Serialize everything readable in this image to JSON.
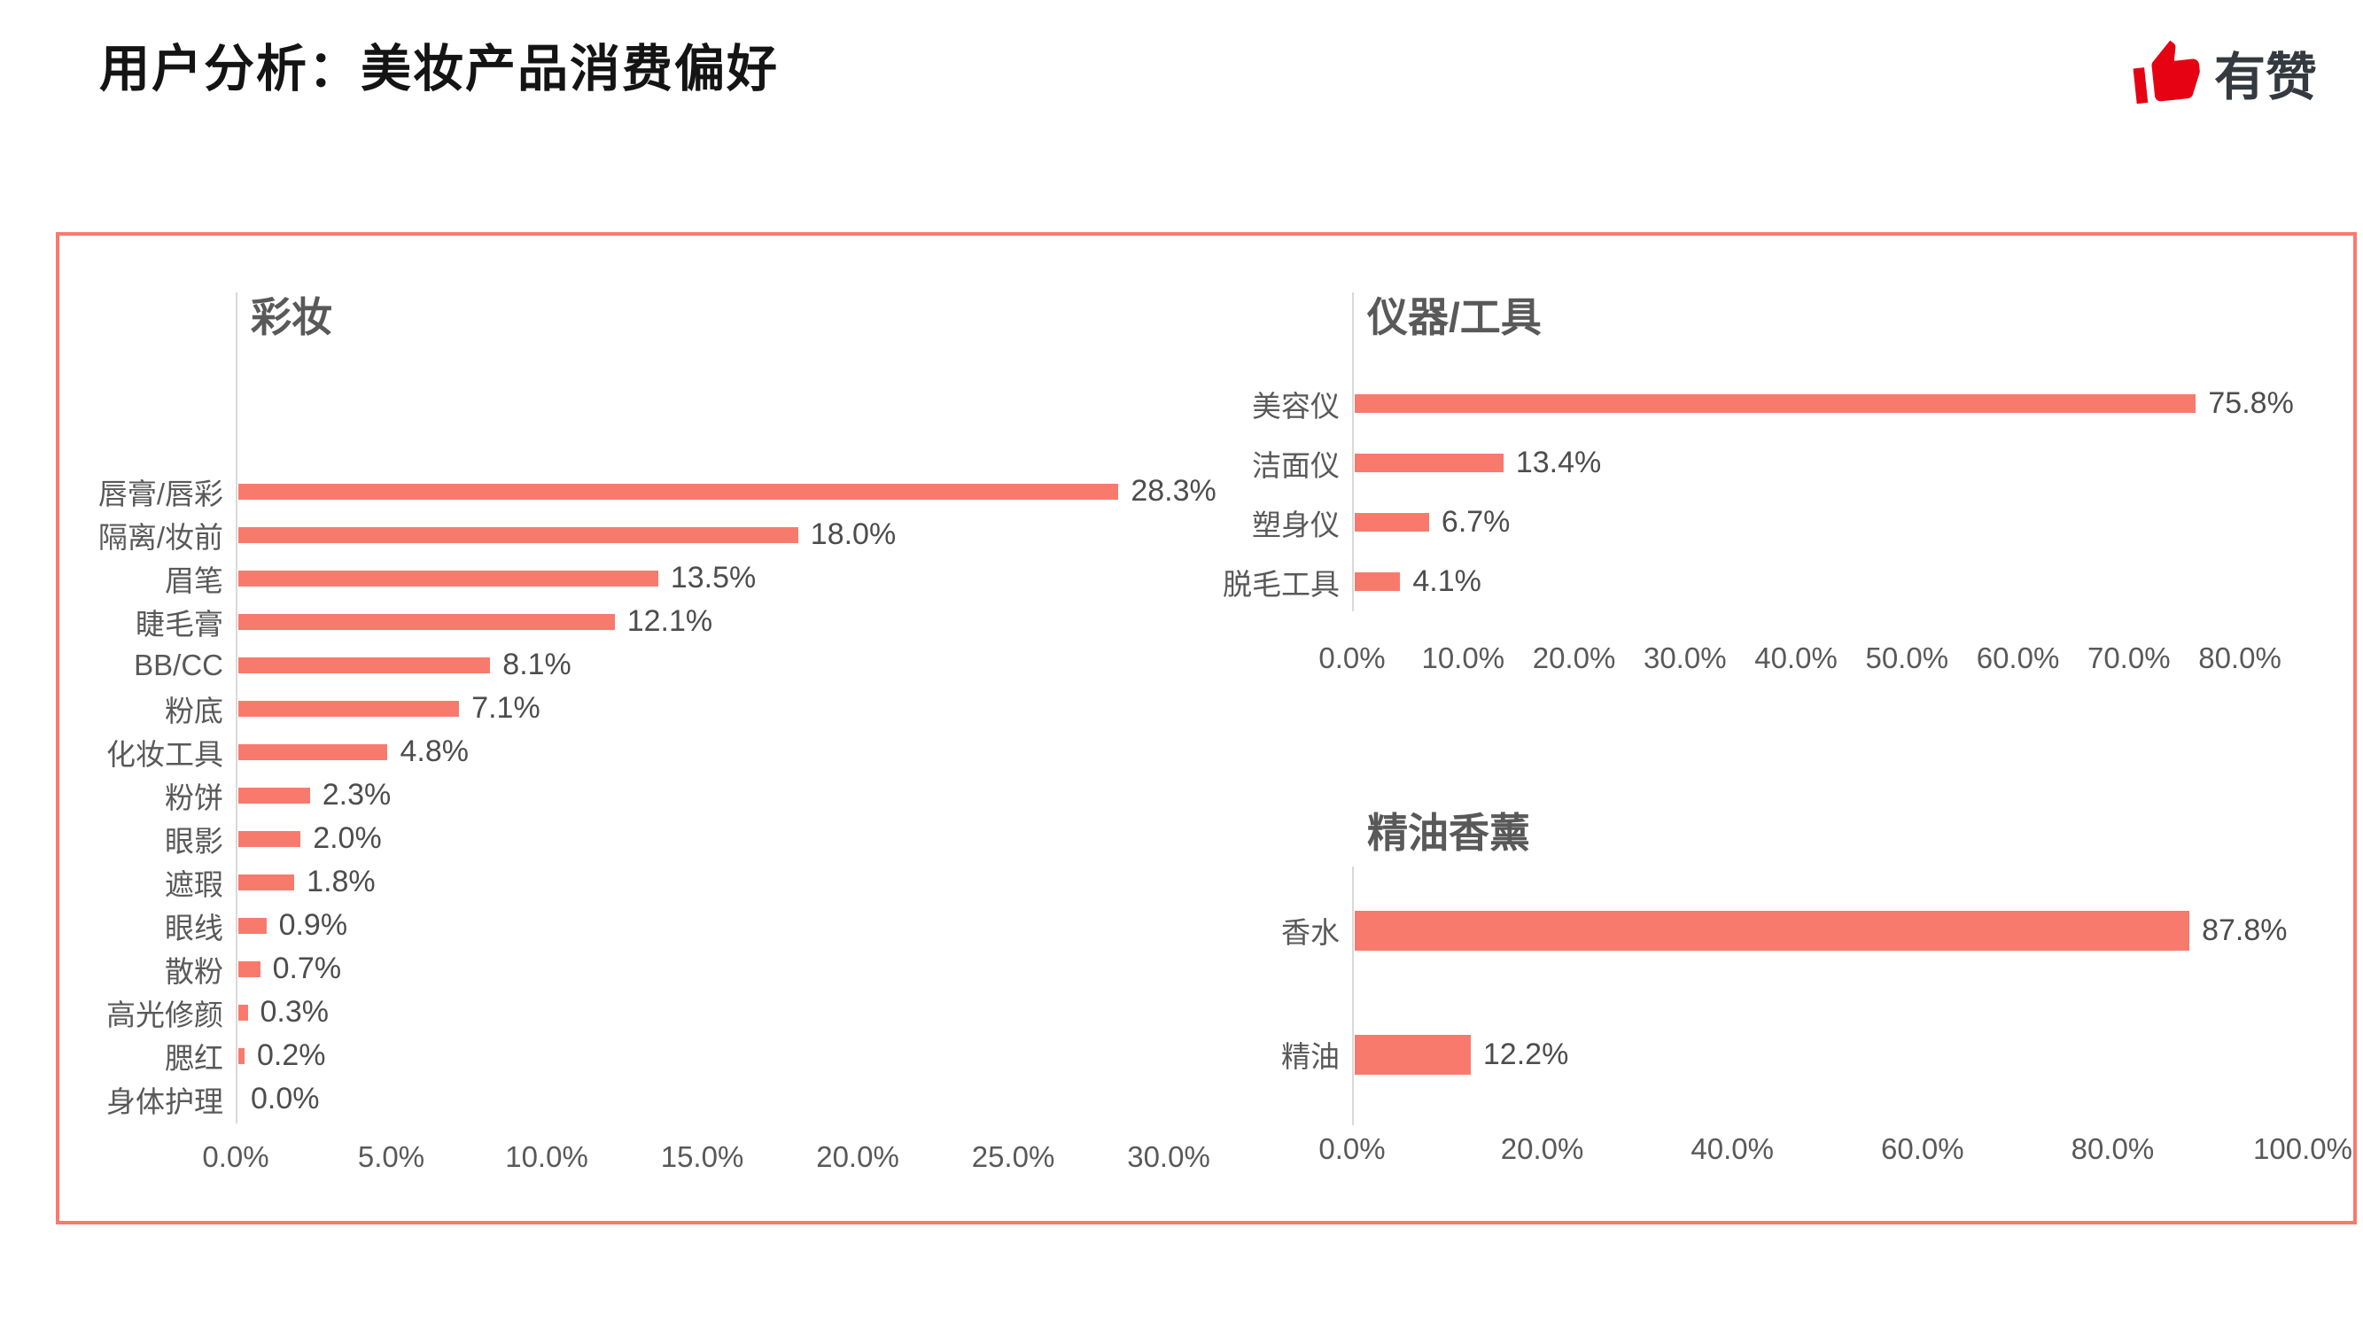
{
  "header": {
    "title": "用户分析：美妆产品消费偏好",
    "logo": {
      "brand": "有赞",
      "icon": "thumbs-up-icon"
    }
  },
  "colors": {
    "accent": "#F87A6D",
    "logo_red": "#E60213",
    "axis_gray": "#D9D9D9",
    "label_gray": "#595959"
  },
  "chart_data": [
    {
      "id": "makeup",
      "type": "bar",
      "orientation": "horizontal",
      "title": "彩妆",
      "categories": [
        "唇膏/唇彩",
        "隔离/妆前",
        "眉笔",
        "睫毛膏",
        "BB/CC",
        "粉底",
        "化妆工具",
        "粉饼",
        "眼影",
        "遮瑕",
        "眼线",
        "散粉",
        "高光修颜",
        "腮红",
        "身体护理"
      ],
      "values": [
        28.3,
        18.0,
        13.5,
        12.1,
        8.1,
        7.1,
        4.8,
        2.3,
        2.0,
        1.8,
        0.9,
        0.7,
        0.3,
        0.2,
        0.0
      ],
      "value_labels": [
        "28.3%",
        "18.0%",
        "13.5%",
        "12.1%",
        "8.1%",
        "7.1%",
        "4.8%",
        "2.3%",
        "2.0%",
        "1.8%",
        "0.9%",
        "0.7%",
        "0.3%",
        "0.2%",
        "0.0%"
      ],
      "x_ticks": [
        "0.0%",
        "5.0%",
        "10.0%",
        "15.0%",
        "20.0%",
        "25.0%",
        "30.0%"
      ],
      "xlim": [
        0,
        30
      ],
      "grid": false,
      "legend": null
    },
    {
      "id": "devices-tools",
      "type": "bar",
      "orientation": "horizontal",
      "title": "仪器/工具",
      "categories": [
        "美容仪",
        "洁面仪",
        "塑身仪",
        "脱毛工具"
      ],
      "values": [
        75.8,
        13.4,
        6.7,
        4.1
      ],
      "value_labels": [
        "75.8%",
        "13.4%",
        "6.7%",
        "4.1%"
      ],
      "x_ticks": [
        "0.0%",
        "10.0%",
        "20.0%",
        "30.0%",
        "40.0%",
        "50.0%",
        "60.0%",
        "70.0%",
        "80.0%"
      ],
      "xlim": [
        0,
        80
      ],
      "grid": false,
      "legend": null
    },
    {
      "id": "essential-oil-aroma",
      "type": "bar",
      "orientation": "horizontal",
      "title": "精油香薰",
      "categories": [
        "香水",
        "精油"
      ],
      "values": [
        87.8,
        12.2
      ],
      "value_labels": [
        "87.8%",
        "12.2%"
      ],
      "x_ticks": [
        "0.0%",
        "20.0%",
        "40.0%",
        "60.0%",
        "80.0%",
        "100.0%"
      ],
      "xlim": [
        0,
        100
      ],
      "grid": false,
      "legend": null
    }
  ]
}
